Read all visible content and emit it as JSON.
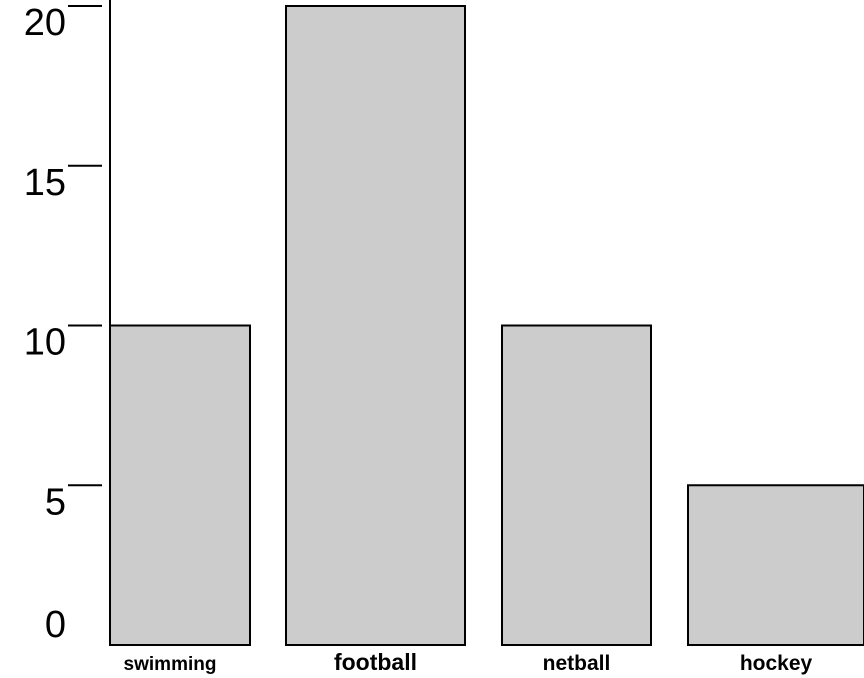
{
  "chart_data": {
    "type": "bar",
    "categories": [
      "swimming",
      "football",
      "netball",
      "hockey"
    ],
    "values": [
      10,
      20,
      10,
      5
    ],
    "title": "",
    "xlabel": "",
    "ylabel": "",
    "ylim": [
      0,
      20
    ],
    "yticks": [
      0,
      5,
      10,
      15,
      20
    ],
    "grid": false,
    "colors": {
      "bar_fill": "#cccccc",
      "bar_stroke": "#000000",
      "axis": "#000000"
    }
  }
}
